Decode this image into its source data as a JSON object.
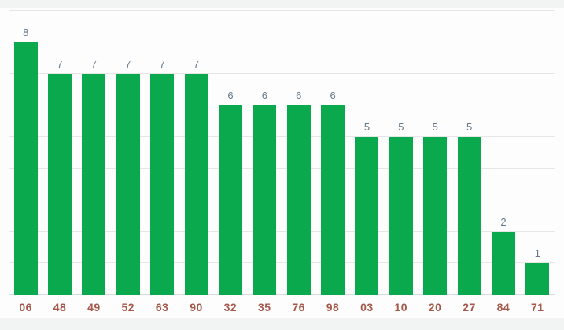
{
  "chart_data": {
    "type": "bar",
    "title": "",
    "xlabel": "",
    "ylabel": "",
    "categories": [
      "06",
      "48",
      "49",
      "52",
      "63",
      "90",
      "32",
      "35",
      "76",
      "98",
      "03",
      "10",
      "20",
      "27",
      "84",
      "71"
    ],
    "values": [
      8,
      7,
      7,
      7,
      7,
      7,
      6,
      6,
      6,
      6,
      5,
      5,
      5,
      5,
      2,
      1
    ],
    "ylim": [
      0,
      9
    ],
    "grid": true,
    "gridline_step": 1,
    "legend_position": "none",
    "annotations_shown_above_bars": true,
    "colors": {
      "bar": "#0ba94e",
      "annotation_text": "#64798c",
      "category_text": "#a5584a",
      "gridline": "#e6e6e6",
      "baseline": "#dadada",
      "plot_background": "#fdfdfd",
      "page_background": "#f2f3f3"
    }
  }
}
